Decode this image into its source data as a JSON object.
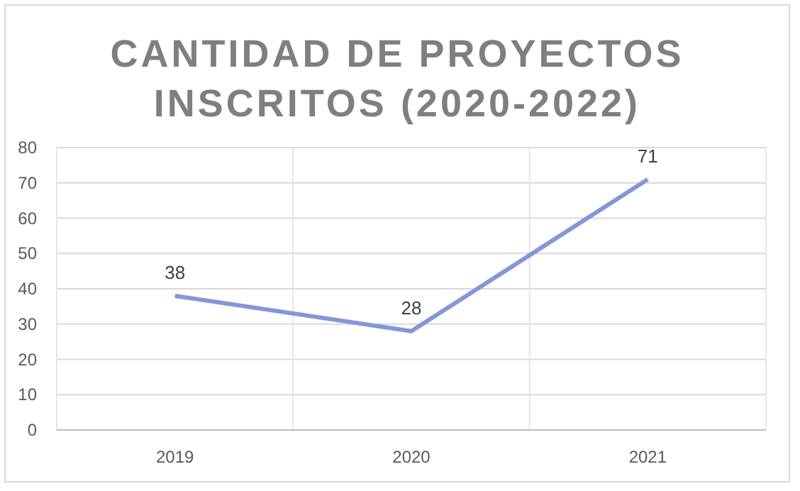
{
  "chart_data": {
    "type": "line",
    "title": "CANTIDAD DE PROYECTOS INSCRITOS (2020-2022)",
    "categories": [
      "2019",
      "2020",
      "2021"
    ],
    "series": [
      {
        "color": "#8496d8",
        "values": [
          38,
          28,
          71
        ]
      }
    ],
    "ylim": [
      0,
      80
    ],
    "yticks": [
      0,
      10,
      20,
      30,
      40,
      50,
      60,
      70,
      80
    ],
    "grid": true,
    "data_labels": true,
    "marker": "none",
    "line_style": "solid"
  }
}
